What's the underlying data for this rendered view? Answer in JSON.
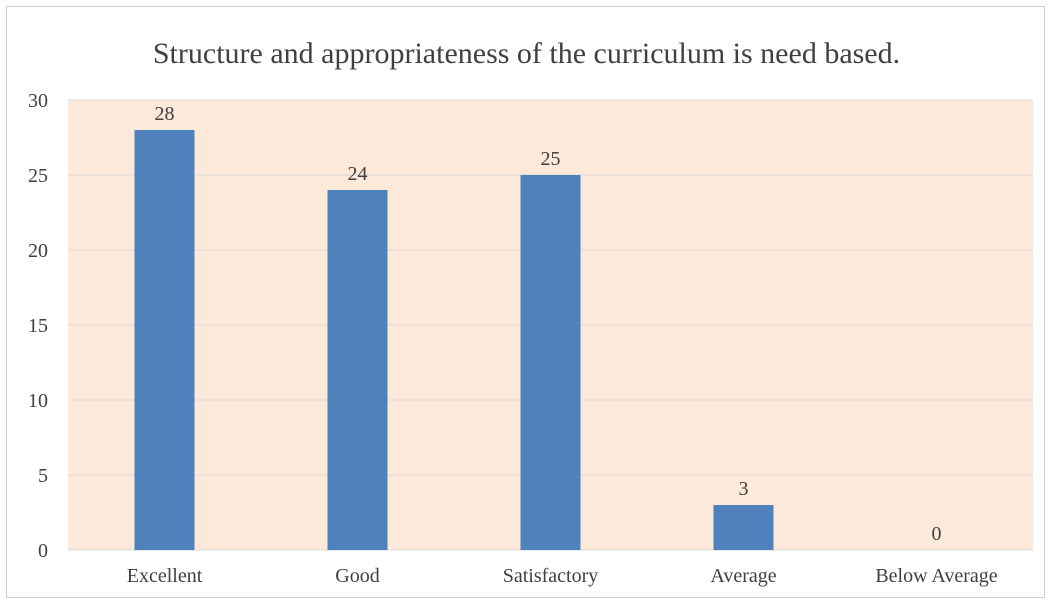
{
  "chart_data": {
    "type": "bar",
    "title": "Structure and appropriateness of the curriculum is need based.",
    "categories": [
      "Excellent",
      "Good",
      "Satisfactory",
      "Average",
      "Below Average"
    ],
    "values": [
      28,
      24,
      25,
      3,
      0
    ],
    "ylim": [
      0,
      30
    ],
    "yticks": [
      0,
      5,
      10,
      15,
      20,
      25,
      30
    ],
    "xlabel": "",
    "ylabel": "",
    "grid": true,
    "legend": "none",
    "data_labels": true,
    "colors": {
      "bar": "#4f81bd",
      "plot_background": "#fde9d9",
      "gridline": "#d9d9d9",
      "text": "#404040"
    }
  }
}
